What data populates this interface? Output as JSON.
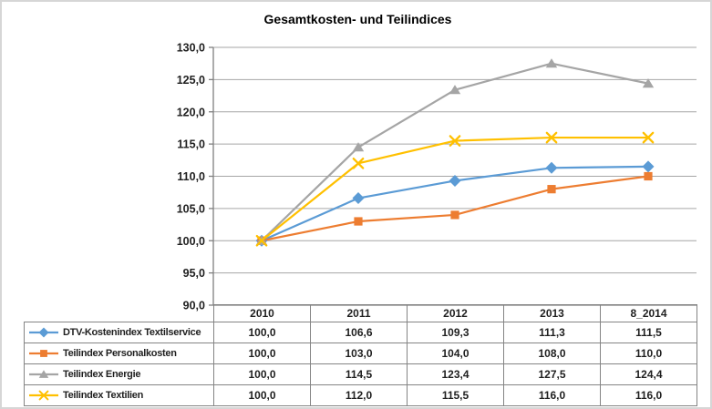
{
  "chart_data": {
    "type": "line",
    "title": "Gesamtkosten- und Teilindices",
    "categories": [
      "2010",
      "2011",
      "2012",
      "2013",
      "8_2014"
    ],
    "series": [
      {
        "name": "DTV-Kostenindex Textilservice",
        "marker": "diamond",
        "color": "#5B9BD5",
        "values": [
          100.0,
          106.6,
          109.3,
          111.3,
          111.5
        ]
      },
      {
        "name": "Teilindex Personalkosten",
        "marker": "square",
        "color": "#ED7D31",
        "values": [
          100.0,
          103.0,
          104.0,
          108.0,
          110.0
        ]
      },
      {
        "name": "Teilindex Energie",
        "marker": "triangle",
        "color": "#A5A5A5",
        "values": [
          100.0,
          114.5,
          123.4,
          127.5,
          124.4
        ]
      },
      {
        "name": "Teilindex Textilien",
        "marker": "x",
        "color": "#FFC000",
        "values": [
          100.0,
          112.0,
          115.5,
          116.0,
          116.0
        ]
      }
    ],
    "ylim": [
      90,
      130
    ],
    "ytick_step": 5,
    "ytick_labels": [
      "90,0",
      "95,0",
      "100,0",
      "105,0",
      "110,0",
      "115,0",
      "120,0",
      "125,0",
      "130,0"
    ],
    "grid": true,
    "legend_position": "data-table-left",
    "decimal_separator": ",",
    "styles": {
      "gridline_color": "#A6A6A6",
      "axis_color": "#808080",
      "table_border_color": "#848484",
      "text_color": "#1f1f1f",
      "background": "#ffffff"
    }
  }
}
